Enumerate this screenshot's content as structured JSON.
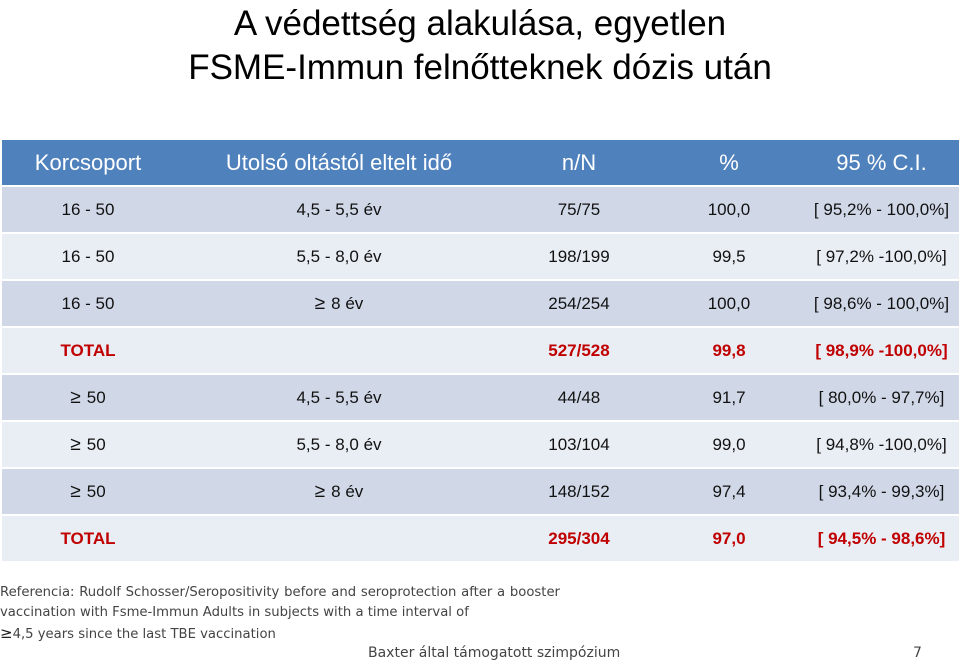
{
  "title": {
    "line1": "A védettség alakulása, egyetlen",
    "line2": "FSME-Immun felnőtteknek dózis után"
  },
  "table": {
    "headers": [
      "Korcsoport",
      "Utolsó oltástól eltelt idő",
      "n/N",
      "%",
      "95 % C.I."
    ],
    "rows": [
      {
        "group": "16 - 50",
        "time": "4,5 - 5,5 év",
        "nN": "75/75",
        "pct": "100,0",
        "ci": "[ 95,2% - 100,0%]"
      },
      {
        "group": "16 - 50",
        "time": "5,5 - 8,0 év",
        "nN": "198/199",
        "pct": "99,5",
        "ci": "[ 97,2% -100,0%]"
      },
      {
        "group": "16 - 50",
        "time_symbol": "≥",
        "time": "8 év",
        "nN": "254/254",
        "pct": "100,0",
        "ci": "[ 98,6% - 100,0%]"
      },
      {
        "group": "TOTAL",
        "time": "",
        "nN": "527/528",
        "pct": "99,8",
        "ci": "[ 98,9% -100,0%]"
      },
      {
        "group_symbol": "≥",
        "group": "50",
        "time": "4,5 - 5,5 év",
        "nN": "44/48",
        "pct": "91,7",
        "ci": "[ 80,0% - 97,7%]"
      },
      {
        "group_symbol": "≥",
        "group": "50",
        "time": "5,5 - 8,0 év",
        "nN": "103/104",
        "pct": "99,0",
        "ci": "[ 94,8% -100,0%]"
      },
      {
        "group_symbol": "≥",
        "group": "50",
        "time_symbol": "≥",
        "time": "8 év",
        "nN": "148/152",
        "pct": "97,4",
        "ci": "[ 93,4% - 99,3%]"
      },
      {
        "group": "TOTAL",
        "time": "",
        "nN": "295/304",
        "pct": "97,0",
        "ci": "[ 94,5% - 98,6%]"
      }
    ]
  },
  "reference": {
    "line1": "Referencia: Rudolf Schosser/Seropositivity before and seroprotection after a",
    "line2": "booster vaccination with Fsme-Immun Adults in subjects with a time interval of",
    "line3_symbol": "≥",
    "line3": "4,5 years since the last TBE vaccination"
  },
  "footer": {
    "text": "Baxter által támogatott szimpózium",
    "page": "7"
  },
  "colors": {
    "header_bg": "#4f81bd",
    "row_odd": "#d0d8e8",
    "row_even": "#e9edf4",
    "total_text": "#c00000"
  }
}
